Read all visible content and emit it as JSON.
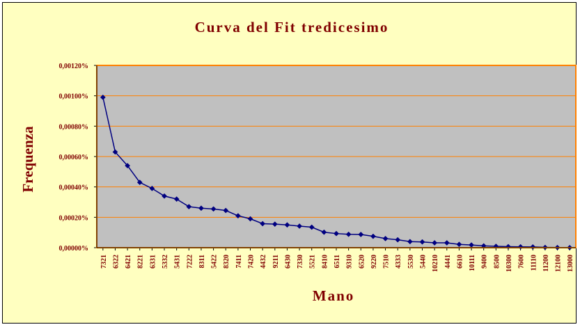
{
  "chart_data": {
    "type": "line",
    "title": "Curva del Fit tredicesimo",
    "xlabel": "Mano",
    "ylabel": "Frequenza",
    "ylim": [
      0,
      0.0012
    ],
    "y_tick_labels": [
      "0,00000%",
      "0,00020%",
      "0,00040%",
      "0,00060%",
      "0,00080%",
      "0,00100%",
      "0,00120%"
    ],
    "grid": true,
    "legend": "none",
    "categories": [
      "7321",
      "6322",
      "6421",
      "8221",
      "6331",
      "5332",
      "5431",
      "7222",
      "8311",
      "5422",
      "8320",
      "7411",
      "7420",
      "4432",
      "9211",
      "6430",
      "7330",
      "5521",
      "8410",
      "6511",
      "9310",
      "6520",
      "9220",
      "7510",
      "4333",
      "5530",
      "5440",
      "10210",
      "4441",
      "6610",
      "10111",
      "9400",
      "8500",
      "10300",
      "7600",
      "11110",
      "11200",
      "12100",
      "13000"
    ],
    "series": [
      {
        "values": [
          0.00099,
          0.00063,
          0.00054,
          0.00043,
          0.00039,
          0.00034,
          0.00032,
          0.00027,
          0.00026,
          0.000255,
          0.000245,
          0.00021,
          0.00019,
          0.000158,
          0.000155,
          0.00015,
          0.000142,
          0.000135,
          0.000102,
          9.3e-05,
          8.8e-05,
          8.7e-05,
          7.5e-05,
          6e-05,
          5.2e-05,
          4e-05,
          3.8e-05,
          3.2e-05,
          3.2e-05,
          2.2e-05,
          1.8e-05,
          1.2e-05,
          9e-06,
          7e-06,
          6e-06,
          5e-06,
          2e-06,
          1e-06,
          5e-07
        ]
      }
    ],
    "colors": {
      "background": "#ffffc0",
      "plot_area": "#c0c0c0",
      "plot_border": "#ff8000",
      "gridline": "#ff8000",
      "series": "#000080",
      "text": "#800000"
    }
  }
}
